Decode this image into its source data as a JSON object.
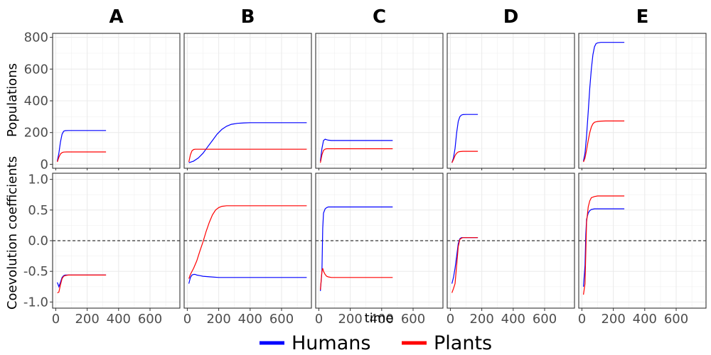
{
  "chart_data": {
    "type": "line",
    "panels": [
      "A",
      "B",
      "C",
      "D",
      "E"
    ],
    "xlabel": "time",
    "x_ticks": [
      0,
      200,
      400,
      600
    ],
    "xlim": [
      -20,
      790
    ],
    "rows": [
      {
        "ylabel": "Populations",
        "ylim": [
          -25,
          825
        ],
        "y_ticks": [
          0,
          200,
          400,
          600,
          800
        ],
        "y_tick_labels": [
          "0",
          "200",
          "400",
          "600",
          "800"
        ],
        "zero_line": false
      },
      {
        "ylabel": "Coevolution coefficients",
        "ylim": [
          -1.1,
          1.1
        ],
        "y_ticks": [
          -1.0,
          -0.5,
          0.0,
          0.5,
          1.0
        ],
        "y_tick_labels": [
          "-1.0",
          "-0.5",
          "0.0",
          "0.5",
          "1.0"
        ],
        "zero_line": true
      }
    ],
    "series_styles": [
      {
        "name": "Humans",
        "color": "#0000ff"
      },
      {
        "name": "Plants",
        "color": "#ff0000"
      }
    ],
    "legend_position": "bottom",
    "grid": true,
    "data": {
      "populations": {
        "A": {
          "Humans": {
            "x": [
              10,
              20,
              30,
              40,
              50,
              60,
              80,
              100,
              150,
              200,
              250,
              320
            ],
            "y": [
              20,
              70,
              140,
              190,
              208,
              212,
              213,
              213,
              213,
              213,
              213,
              213
            ]
          },
          "Plants": {
            "x": [
              10,
              20,
              30,
              40,
              50,
              70,
              100,
              150,
              200,
              250,
              320
            ],
            "y": [
              15,
              45,
              65,
              74,
              77,
              78,
              78,
              78,
              78,
              78,
              78
            ]
          }
        },
        "B": {
          "Humans": {
            "x": [
              10,
              40,
              70,
              100,
              130,
              160,
              190,
              220,
              250,
              280,
              320,
              360,
              400,
              500,
              600,
              760
            ],
            "y": [
              10,
              20,
              40,
              70,
              110,
              150,
              190,
              220,
              240,
              252,
              258,
              261,
              262,
              262,
              262,
              262
            ]
          },
          "Plants": {
            "x": [
              10,
              20,
              30,
              40,
              50,
              70,
              100,
              200,
              400,
              760
            ],
            "y": [
              15,
              60,
              85,
              93,
              95,
              95,
              95,
              95,
              95,
              95
            ]
          }
        },
        "C": {
          "Humans": {
            "x": [
              10,
              20,
              30,
              40,
              50,
              60,
              80,
              100,
              150,
              200,
              300,
              470
            ],
            "y": [
              20,
              100,
              150,
              158,
              155,
              152,
              150,
              150,
              150,
              150,
              150,
              150
            ]
          },
          "Plants": {
            "x": [
              10,
              20,
              30,
              40,
              50,
              70,
              100,
              200,
              300,
              470
            ],
            "y": [
              10,
              60,
              88,
              96,
              98,
              98,
              98,
              98,
              98,
              98
            ]
          }
        },
        "D": {
          "Humans": {
            "x": [
              10,
              20,
              30,
              40,
              50,
              60,
              70,
              80,
              100,
              120,
              150,
              175
            ],
            "y": [
              10,
              40,
              100,
              200,
              270,
              300,
              310,
              313,
              314,
              314,
              314,
              314
            ]
          },
          "Plants": {
            "x": [
              10,
              20,
              30,
              40,
              50,
              60,
              80,
              100,
              150,
              175
            ],
            "y": [
              10,
              30,
              55,
              70,
              78,
              80,
              82,
              82,
              82,
              82
            ]
          }
        },
        "E": {
          "Humans": {
            "x": [
              10,
              20,
              30,
              40,
              50,
              60,
              70,
              80,
              90,
              100,
              120,
              150,
              200,
              270
            ],
            "y": [
              20,
              70,
              180,
              330,
              480,
              600,
              690,
              740,
              760,
              765,
              768,
              768,
              768,
              768
            ]
          },
          "Plants": {
            "x": [
              10,
              20,
              30,
              40,
              50,
              60,
              70,
              80,
              100,
              120,
              150,
              200,
              270
            ],
            "y": [
              15,
              40,
              90,
              150,
              200,
              235,
              255,
              265,
              270,
              272,
              273,
              273,
              273
            ]
          }
        }
      },
      "coevolution": {
        "A": {
          "Humans": {
            "x": [
              10,
              20,
              30,
              40,
              50,
              60,
              80,
              100,
              150,
              200,
              250,
              320
            ],
            "y": [
              -0.68,
              -0.75,
              -0.68,
              -0.6,
              -0.57,
              -0.56,
              -0.56,
              -0.56,
              -0.56,
              -0.56,
              -0.56,
              -0.56
            ]
          },
          "Plants": {
            "x": [
              10,
              20,
              30,
              40,
              50,
              60,
              80,
              100,
              150,
              200,
              250,
              320
            ],
            "y": [
              -0.85,
              -0.84,
              -0.72,
              -0.62,
              -0.58,
              -0.57,
              -0.56,
              -0.56,
              -0.56,
              -0.56,
              -0.56,
              -0.56
            ]
          }
        },
        "B": {
          "Humans": {
            "x": [
              10,
              20,
              30,
              40,
              50,
              60,
              80,
              100,
              150,
              200,
              300,
              400,
              500,
              600,
              760
            ],
            "y": [
              -0.7,
              -0.6,
              -0.56,
              -0.55,
              -0.55,
              -0.56,
              -0.57,
              -0.58,
              -0.59,
              -0.6,
              -0.6,
              -0.6,
              -0.6,
              -0.6,
              -0.6
            ]
          },
          "Plants": {
            "x": [
              10,
              20,
              40,
              60,
              80,
              100,
              120,
              140,
              160,
              180,
              200,
              220,
              250,
              300,
              400,
              500,
              760
            ],
            "y": [
              -0.62,
              -0.55,
              -0.45,
              -0.33,
              -0.17,
              -0.02,
              0.15,
              0.3,
              0.42,
              0.5,
              0.54,
              0.56,
              0.57,
              0.57,
              0.57,
              0.57,
              0.57
            ]
          }
        },
        "C": {
          "Humans": {
            "x": [
              10,
              20,
              25,
              30,
              40,
              50,
              60,
              80,
              100,
              150,
              200,
              300,
              470
            ],
            "y": [
              -0.82,
              -0.5,
              0.2,
              0.45,
              0.52,
              0.54,
              0.55,
              0.55,
              0.55,
              0.55,
              0.55,
              0.55,
              0.55
            ]
          },
          "Plants": {
            "x": [
              10,
              20,
              25,
              30,
              40,
              50,
              60,
              80,
              100,
              150,
              200,
              300,
              470
            ],
            "y": [
              -0.8,
              -0.5,
              -0.45,
              -0.5,
              -0.55,
              -0.58,
              -0.59,
              -0.6,
              -0.6,
              -0.6,
              -0.6,
              -0.6,
              -0.6
            ]
          }
        },
        "D": {
          "Humans": {
            "x": [
              10,
              20,
              30,
              40,
              50,
              60,
              70,
              80,
              100,
              120,
              150,
              175
            ],
            "y": [
              -0.7,
              -0.6,
              -0.45,
              -0.25,
              -0.05,
              0.03,
              0.05,
              0.05,
              0.05,
              0.05,
              0.05,
              0.05
            ]
          },
          "Plants": {
            "x": [
              10,
              20,
              30,
              40,
              50,
              60,
              70,
              80,
              100,
              120,
              150,
              175
            ],
            "y": [
              -0.85,
              -0.78,
              -0.7,
              -0.4,
              -0.1,
              0.02,
              0.04,
              0.05,
              0.05,
              0.05,
              0.05,
              0.05
            ]
          }
        },
        "E": {
          "Humans": {
            "x": [
              10,
              20,
              25,
              30,
              40,
              50,
              60,
              80,
              100,
              150,
              200,
              270
            ],
            "y": [
              -0.75,
              -0.4,
              0.1,
              0.35,
              0.45,
              0.49,
              0.51,
              0.52,
              0.52,
              0.52,
              0.52,
              0.52
            ]
          },
          "Plants": {
            "x": [
              10,
              20,
              25,
              30,
              40,
              50,
              60,
              80,
              100,
              150,
              200,
              270
            ],
            "y": [
              -0.88,
              -0.7,
              -0.2,
              0.3,
              0.55,
              0.65,
              0.7,
              0.72,
              0.73,
              0.73,
              0.73,
              0.73
            ]
          }
        }
      }
    }
  }
}
